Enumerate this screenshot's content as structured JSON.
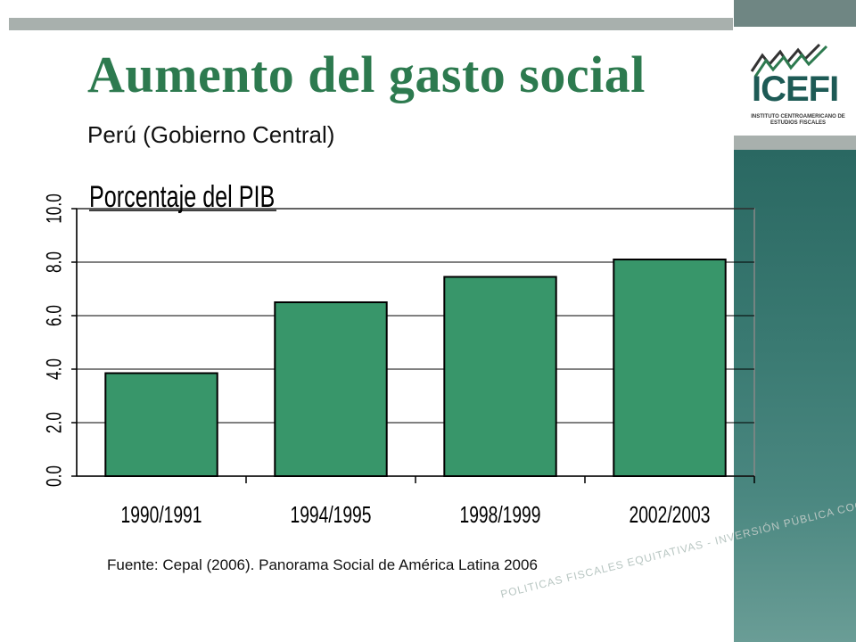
{
  "slide": {
    "title": "Aumento del gasto social",
    "subtitle": "Perú (Gobierno Central)",
    "source": "Fuente: Cepal (2006). Panorama Social de América Latina 2006",
    "watermark": "POLITICAS FISCALES EQUITATIVAS - INVERSIÓN PÚBLICA COOPARTICIPAC"
  },
  "logo": {
    "name": "ICEFI",
    "subtitle": "INSTITUTO CENTROAMERICANO DE ESTUDIOS FISCALES"
  },
  "colors": {
    "title": "#2d7a4f",
    "bar": "#38966a",
    "panel": "#1d5a55"
  },
  "chart_data": {
    "type": "bar",
    "categories": [
      "1990/1991",
      "1994/1995",
      "1998/1999",
      "2002/2003"
    ],
    "values": [
      3.85,
      6.5,
      7.45,
      8.1
    ],
    "ylabel": "Porcentaje del PIB",
    "ylim": [
      0,
      10
    ],
    "yticks": [
      "0.0",
      "2.0",
      "4.0",
      "6.0",
      "8.0",
      "10.0"
    ],
    "grid": true
  }
}
